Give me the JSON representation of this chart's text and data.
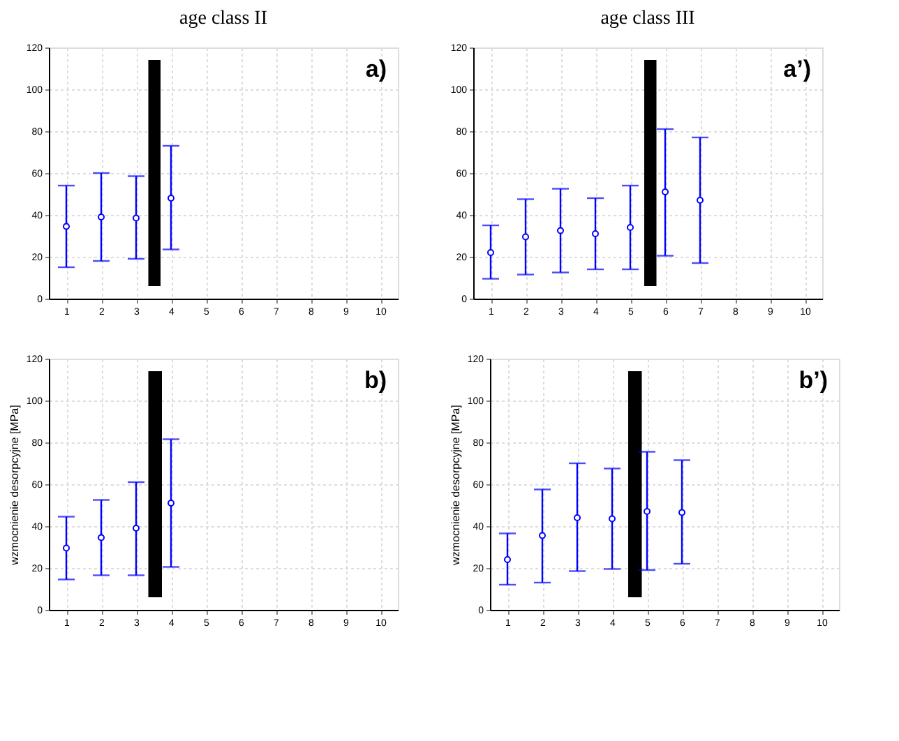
{
  "chart_data": [
    {
      "type": "scatter",
      "title": "age class II",
      "x": [
        1,
        2,
        3,
        4
      ],
      "values": [
        34.5,
        39,
        38.5,
        48
      ],
      "errors": [
        [
          15,
          54
        ],
        [
          18,
          60
        ],
        [
          19,
          58.5
        ],
        [
          23.5,
          73
        ]
      ],
      "color": "#0000ff",
      "marker": "circle",
      "xlim": [
        0.5,
        10.5
      ],
      "xticks": [
        1,
        2,
        3,
        4,
        5,
        6,
        7,
        8,
        9,
        10
      ],
      "ylim": [
        0,
        120
      ],
      "yticks": [
        0,
        20,
        40,
        60,
        80,
        100,
        120
      ],
      "grid": true,
      "bands": [
        {
          "axis": "x",
          "from": 3.35,
          "to": 3.7,
          "color": "#000000"
        }
      ],
      "annotations": [
        "a)"
      ]
    },
    {
      "type": "scatter",
      "title": "age class III",
      "x": [
        1,
        2,
        3,
        4,
        5,
        6,
        7
      ],
      "values": [
        22,
        29.5,
        32.5,
        31,
        34,
        51,
        47
      ],
      "errors": [
        [
          9.5,
          35
        ],
        [
          11.5,
          47.5
        ],
        [
          12.5,
          52.5
        ],
        [
          14,
          48
        ],
        [
          14,
          54
        ],
        [
          20.5,
          81
        ],
        [
          17,
          77
        ]
      ],
      "color": "#0000ff",
      "marker": "circle",
      "xlim": [
        0.5,
        10.5
      ],
      "xticks": [
        1,
        2,
        3,
        4,
        5,
        6,
        7,
        8,
        9,
        10
      ],
      "ylim": [
        0,
        120
      ],
      "yticks": [
        0,
        20,
        40,
        60,
        80,
        100,
        120
      ],
      "grid": true,
      "bands": [
        {
          "axis": "x",
          "from": 5.4,
          "to": 5.75,
          "color": "#000000"
        }
      ],
      "annotations": [
        "a’)"
      ]
    },
    {
      "type": "scatter",
      "ylabel": "wzmocnienie desorpcyjne [MPa]",
      "x": [
        1,
        2,
        3,
        4
      ],
      "values": [
        29.5,
        34.5,
        39,
        51
      ],
      "errors": [
        [
          14.5,
          44.5
        ],
        [
          16.5,
          52.5
        ],
        [
          16.5,
          61
        ],
        [
          20.5,
          81.5
        ]
      ],
      "color": "#0000ff",
      "marker": "circle",
      "xlim": [
        0.5,
        10.5
      ],
      "xticks": [
        1,
        2,
        3,
        4,
        5,
        6,
        7,
        8,
        9,
        10
      ],
      "ylim": [
        0,
        120
      ],
      "yticks": [
        0,
        20,
        40,
        60,
        80,
        100,
        120
      ],
      "grid": true,
      "bands": [
        {
          "axis": "x",
          "from": 3.35,
          "to": 3.74,
          "color": "#000000"
        }
      ],
      "annotations": [
        "b)"
      ]
    },
    {
      "type": "scatter",
      "ylabel": "wzmocnienie desorpcyjne [MPa]",
      "x": [
        1,
        2,
        3,
        4,
        5,
        6
      ],
      "values": [
        24,
        35.5,
        44,
        43.5,
        47,
        46.5
      ],
      "errors": [
        [
          12,
          36.5
        ],
        [
          13,
          57.5
        ],
        [
          18.5,
          70
        ],
        [
          19.5,
          67.5
        ],
        [
          19,
          75.5
        ],
        [
          22,
          71.5
        ]
      ],
      "color": "#0000ff",
      "marker": "circle",
      "xlim": [
        0.5,
        10.5
      ],
      "xticks": [
        1,
        2,
        3,
        4,
        5,
        6,
        7,
        8,
        9,
        10
      ],
      "ylim": [
        0,
        120
      ],
      "yticks": [
        0,
        20,
        40,
        60,
        80,
        100,
        120
      ],
      "grid": true,
      "bands": [
        {
          "axis": "x",
          "from": 4.46,
          "to": 4.85,
          "color": "#000000"
        }
      ],
      "annotations": [
        "b’)"
      ]
    }
  ]
}
